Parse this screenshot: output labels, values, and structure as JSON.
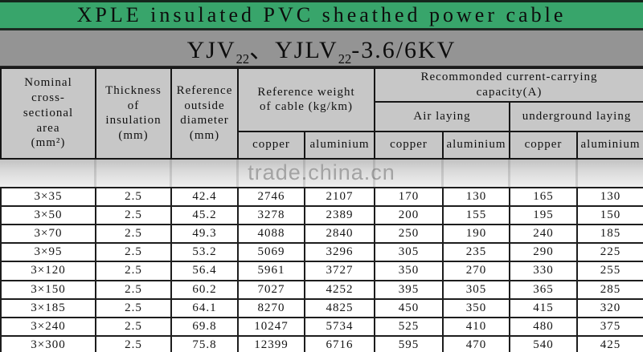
{
  "title": "XPLE insulated PVC sheathed power cable",
  "subtitle": {
    "p1": "YJV",
    "s1": "22",
    "p2": "、YJLV",
    "s2": "22",
    "p3": "-3.6/6KV"
  },
  "watermark": "trade.china.cn",
  "colors": {
    "banner_green": "#38a56b",
    "banner_gray": "#949494",
    "header_bg": "#c7c7c7",
    "border_black": "#161616",
    "watermark_text": "#a3a3a3",
    "data_bg": "#ffffff"
  },
  "table": {
    "header": {
      "nominal_area": "Nominal\ncross-\nsectional\narea\n(mm²)",
      "thickness": "Thickness\nof\ninsulation\n(mm)",
      "ref_diameter": "Reference\noutside\ndiameter\n(mm)",
      "ref_weight": "Reference weight\nof cable  (kg/km)",
      "capacity": "Recommonded current-carrying\ncapacity(A)",
      "air_laying": "Air laying",
      "underground_laying": "underground laying",
      "copper": "copper",
      "aluminium": "aluminium"
    },
    "rows": [
      [
        "3×35",
        "2.5",
        "42.4",
        "2746",
        "2107",
        "170",
        "130",
        "165",
        "130"
      ],
      [
        "3×50",
        "2.5",
        "45.2",
        "3278",
        "2389",
        "200",
        "155",
        "195",
        "150"
      ],
      [
        "3×70",
        "2.5",
        "49.3",
        "4088",
        "2840",
        "250",
        "190",
        "240",
        "185"
      ],
      [
        "3×95",
        "2.5",
        "53.2",
        "5069",
        "3296",
        "305",
        "235",
        "290",
        "225"
      ],
      [
        "3×120",
        "2.5",
        "56.4",
        "5961",
        "3727",
        "350",
        "270",
        "330",
        "255"
      ],
      [
        "3×150",
        "2.5",
        "60.2",
        "7027",
        "4252",
        "395",
        "305",
        "365",
        "285"
      ],
      [
        "3×185",
        "2.5",
        "64.1",
        "8270",
        "4825",
        "450",
        "350",
        "415",
        "320"
      ],
      [
        "3×240",
        "2.5",
        "69.8",
        "10247",
        "5734",
        "525",
        "410",
        "480",
        "375"
      ],
      [
        "3×300",
        "2.5",
        "75.8",
        "12399",
        "6716",
        "595",
        "470",
        "540",
        "425"
      ]
    ]
  }
}
